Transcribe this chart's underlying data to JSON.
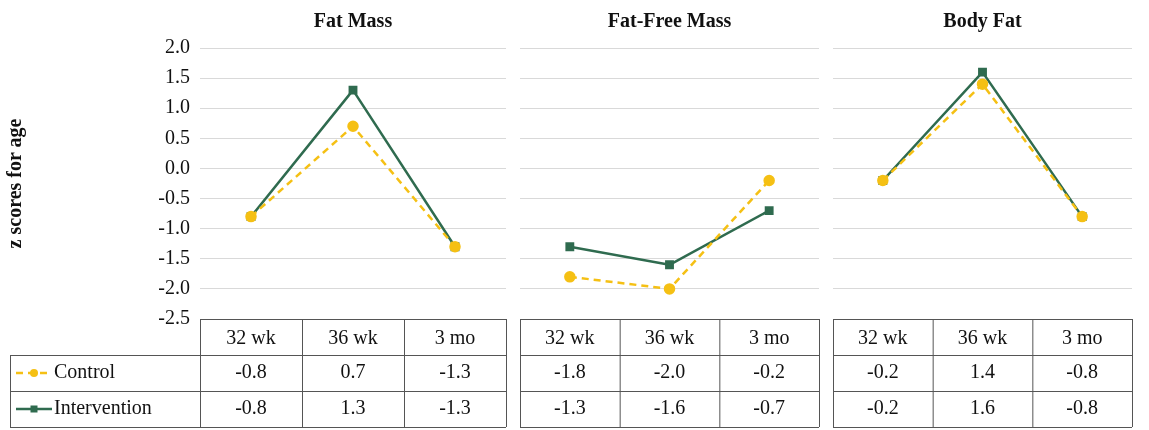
{
  "chart_data": [
    {
      "type": "line",
      "title": "Fat Mass",
      "ylabel": "z scores for age",
      "categories": [
        "32 wk",
        "36 wk",
        "3 mo"
      ],
      "series": [
        {
          "name": "Control",
          "color": "#f5c014",
          "marker": "circle",
          "line_style": "dashed",
          "values": [
            -0.8,
            0.7,
            -1.3
          ],
          "value_labels": [
            "-0.8",
            "0.7",
            "-1.3"
          ]
        },
        {
          "name": "Intervention",
          "color": "#2f6b4f",
          "marker": "square",
          "line_style": "solid",
          "values": [
            -0.8,
            1.3,
            -1.3
          ],
          "value_labels": [
            "-0.8",
            "1.3",
            "-1.3"
          ]
        }
      ],
      "ylim": [
        -2.5,
        2.0
      ],
      "yticks": [
        {
          "value": -2.5,
          "label": "-2.5"
        },
        {
          "value": -2,
          "label": "-2.0"
        },
        {
          "value": -1.5,
          "label": "-1.5"
        },
        {
          "value": -1,
          "label": "-1.0"
        },
        {
          "value": -0.5,
          "label": "-0.5"
        },
        {
          "value": 0,
          "label": "0.0"
        },
        {
          "value": 0.5,
          "label": "0.5"
        },
        {
          "value": 1,
          "label": "1.0"
        },
        {
          "value": 1.5,
          "label": "1.5"
        },
        {
          "value": 2,
          "label": "2.0"
        }
      ],
      "grid": "y",
      "legend": "bottom left"
    },
    {
      "type": "line",
      "title": "Fat-Free Mass",
      "categories": [
        "32 wk",
        "36 wk",
        "3 mo"
      ],
      "series": [
        {
          "color": "#f5c014",
          "marker": "circle",
          "line_style": "dashed",
          "values": [
            -1.8,
            -2.0,
            -0.2
          ],
          "value_labels": [
            "-1.8",
            "-2.0",
            "-0.2"
          ]
        },
        {
          "color": "#2f6b4f",
          "marker": "square",
          "line_style": "solid",
          "values": [
            -1.3,
            -1.6,
            -0.7
          ],
          "value_labels": [
            "-1.3",
            "-1.6",
            "-0.7"
          ]
        }
      ],
      "ylim": [
        -2.5,
        2.0
      ],
      "yticks": [
        -2.5,
        -2,
        -1.5,
        -1,
        -0.5,
        0,
        0.5,
        1,
        1.5,
        2
      ],
      "grid": "y",
      "tick_labels": "x"
    },
    {
      "type": "line",
      "title": "Body Fat",
      "categories": [
        "32 wk",
        "36 wk",
        "3 mo"
      ],
      "series": [
        {
          "color": "#f5c014",
          "marker": "circle",
          "line_style": "dashed",
          "values": [
            -0.2,
            1.4,
            -0.8
          ],
          "value_labels": [
            "-0.2",
            "1.4",
            "-0.8"
          ]
        },
        {
          "color": "#2f6b4f",
          "marker": "square",
          "line_style": "solid",
          "values": [
            -0.2,
            1.6,
            -0.8
          ],
          "value_labels": [
            "-0.2",
            "1.6",
            "-0.8"
          ]
        }
      ],
      "ylim": [
        -2.5,
        2.0
      ],
      "yticks": [
        -2.5,
        -2,
        -1.5,
        -1,
        -0.5,
        0,
        0.5,
        1,
        1.5,
        2
      ],
      "grid": "y",
      "tick_labels": "x"
    }
  ]
}
